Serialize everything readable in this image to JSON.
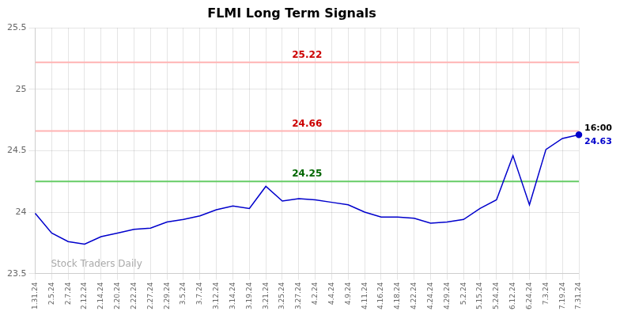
{
  "chart_data": {
    "type": "line",
    "title": "FLMI Long Term Signals",
    "categories": [
      "1.31.24",
      "2.5.24",
      "2.7.24",
      "2.12.24",
      "2.14.24",
      "2.20.24",
      "2.22.24",
      "2.27.24",
      "2.29.24",
      "3.5.24",
      "3.7.24",
      "3.12.24",
      "3.14.24",
      "3.19.24",
      "3.21.24",
      "3.25.24",
      "3.27.24",
      "4.2.24",
      "4.4.24",
      "4.9.24",
      "4.11.24",
      "4.16.24",
      "4.18.24",
      "4.22.24",
      "4.24.24",
      "4.29.24",
      "5.2.24",
      "5.15.24",
      "5.24.24",
      "6.12.24",
      "6.24.24",
      "7.3.24",
      "7.19.24",
      "7.31.24"
    ],
    "values": [
      23.99,
      23.83,
      23.76,
      23.74,
      23.8,
      23.83,
      23.86,
      23.87,
      23.92,
      23.94,
      23.97,
      24.02,
      24.05,
      24.03,
      24.21,
      24.09,
      24.11,
      24.1,
      24.08,
      24.06,
      24.0,
      23.96,
      23.96,
      23.95,
      23.91,
      23.92,
      23.94,
      24.03,
      24.1,
      24.46,
      24.06,
      24.51,
      24.6,
      24.63
    ],
    "color": "#0000cc",
    "ylim": [
      23.5,
      25.5
    ],
    "yticks": [
      23.5,
      24,
      24.5,
      25,
      25.5
    ],
    "grid": true,
    "hlines": [
      {
        "value": 25.22,
        "color": "#ffb3b3",
        "label_color": "#cc0000"
      },
      {
        "value": 24.66,
        "color": "#ffb3b3",
        "label_color": "#cc0000"
      },
      {
        "value": 24.25,
        "color": "#66cc66",
        "label_color": "#006600"
      }
    ],
    "annotations": [
      {
        "text": "16:00",
        "x": "7.31.24",
        "y": 24.63,
        "color": "#000000"
      },
      {
        "text": "24.63",
        "x": "7.31.24",
        "y": 24.63,
        "color": "#0000cc"
      },
      {
        "text": "Stock Traders Daily",
        "color": "#aaaaaa"
      }
    ]
  }
}
